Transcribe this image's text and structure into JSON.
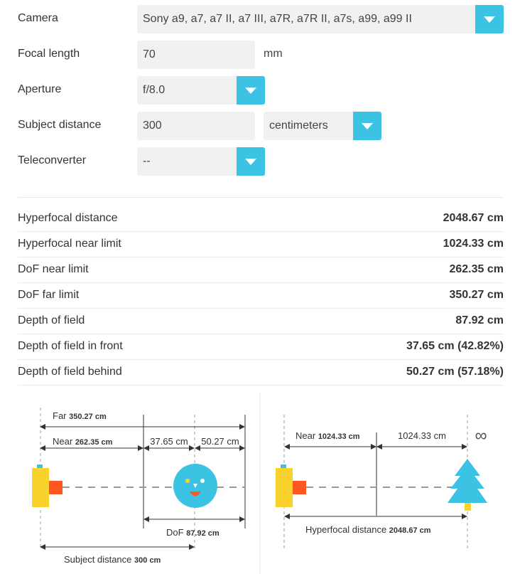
{
  "form": {
    "camera": {
      "label": "Camera",
      "value": "Sony a9, a7, a7 II, a7 III, a7R, a7R II, a7s, a99, a99 II"
    },
    "focal_length": {
      "label": "Focal length",
      "value": "70",
      "unit": "mm"
    },
    "aperture": {
      "label": "Aperture",
      "value": "f/8.0"
    },
    "subject_distance": {
      "label": "Subject distance",
      "value": "300",
      "unit": "centimeters"
    },
    "teleconverter": {
      "label": "Teleconverter",
      "value": "--"
    }
  },
  "results": [
    {
      "label": "Hyperfocal distance",
      "value": "2048.67 cm"
    },
    {
      "label": "Hyperfocal near limit",
      "value": "1024.33 cm"
    },
    {
      "label": "DoF near limit",
      "value": "262.35 cm"
    },
    {
      "label": "DoF far limit",
      "value": "350.27 cm"
    },
    {
      "label": "Depth of field",
      "value": "87.92 cm"
    },
    {
      "label": "Depth of field in front",
      "value": "37.65 cm (42.82%)"
    },
    {
      "label": "Depth of field behind",
      "value": "50.27 cm (57.18%)"
    }
  ],
  "diagram_dof": {
    "far_label": "Far",
    "far_value": "350.27 cm",
    "near_label": "Near",
    "near_value": "262.35 cm",
    "front_value": "37.65 cm",
    "behind_value": "50.27 cm",
    "dof_label": "DoF",
    "dof_value": "87.92 cm",
    "subject_label": "Subject distance",
    "subject_value": "300 cm"
  },
  "diagram_hyperfocal": {
    "near_label": "Near",
    "near_value": "1024.33 cm",
    "half_value": "1024.33 cm",
    "infinity": "∞",
    "hyper_label": "Hyperfocal distance",
    "hyper_value": "2048.67 cm"
  },
  "colors": {
    "accent": "#3cc2e2",
    "camera_body": "#f9d22c",
    "lens": "#ff5722",
    "face": "#3cc2e2",
    "tree": "#3cc2e2"
  }
}
